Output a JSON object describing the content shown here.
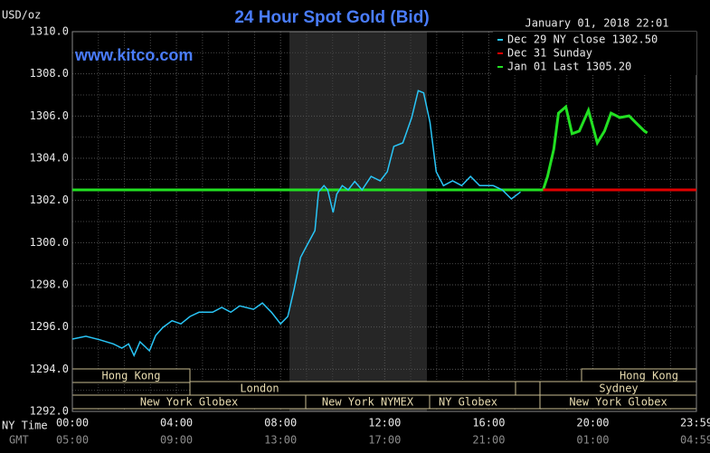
{
  "chart_data": {
    "type": "line",
    "title": "24 Hour Spot Gold (Bid)",
    "subtitle": "www.kitco.com",
    "timestamp": "January 01, 2018 22:01",
    "y_label": "USD/oz",
    "x_label": "NY Time",
    "x2_label": "GMT",
    "xlim": [
      0,
      23.98
    ],
    "xticks": [
      {
        "value": 0,
        "label": "00:00"
      },
      {
        "value": 4,
        "label": "04:00"
      },
      {
        "value": 8,
        "label": "08:00"
      },
      {
        "value": 12,
        "label": "12:00"
      },
      {
        "value": 16,
        "label": "16:00"
      },
      {
        "value": 20,
        "label": "20:00"
      },
      {
        "value": 23.98,
        "label": "23:59"
      }
    ],
    "gmt_tick_labels": [
      "05:00",
      "09:00",
      "13:00",
      "17:00",
      "21:00",
      "01:00",
      "04:59"
    ],
    "ylim": [
      1292,
      1310
    ],
    "yticks": [
      {
        "value": 1292,
        "label": "1292.0"
      },
      {
        "value": 1294,
        "label": "1294.0"
      },
      {
        "value": 1296,
        "label": "1296.0"
      },
      {
        "value": 1298,
        "label": "1298.0"
      },
      {
        "value": 1300,
        "label": "1300.0"
      },
      {
        "value": 1302,
        "label": "1302.0"
      },
      {
        "value": 1304,
        "label": "1304.0"
      },
      {
        "value": 1306,
        "label": "1306.0"
      },
      {
        "value": 1308,
        "label": "1308.0"
      },
      {
        "value": 1310,
        "label": "1310.0"
      }
    ],
    "grid": true,
    "sessions": [
      [
        "Hong Kong",
        "Hong Kong"
      ],
      [
        "London",
        "Sydney"
      ],
      [
        "New York Globex",
        "New York NYMEX",
        "NY Globex",
        "New York Globex"
      ]
    ],
    "series": [
      {
        "name": "Dec 29 NY close 1302.50",
        "color": "#29c5f6",
        "x": [
          0,
          0.52,
          1.04,
          1.57,
          1.9,
          2.16,
          2.37,
          2.6,
          2.96,
          3.2,
          3.48,
          3.83,
          4.17,
          4.52,
          4.87,
          5.39,
          5.74,
          6.09,
          6.43,
          6.96,
          7.3,
          7.65,
          8.0,
          8.28,
          8.52,
          8.77,
          9.04,
          9.32,
          9.46,
          9.67,
          9.81,
          10.02,
          10.16,
          10.37,
          10.6,
          10.85,
          11.13,
          11.48,
          11.83,
          12.1,
          12.35,
          12.7,
          13.04,
          13.29,
          13.5,
          13.74,
          13.98,
          14.26,
          14.61,
          14.96,
          15.3,
          15.65,
          16.17,
          16.52,
          16.87,
          17.22
        ],
        "values": [
          1295.43,
          1295.56,
          1295.4,
          1295.2,
          1295.0,
          1295.2,
          1294.65,
          1295.3,
          1294.87,
          1295.6,
          1295.98,
          1296.3,
          1296.15,
          1296.5,
          1296.7,
          1296.7,
          1296.93,
          1296.7,
          1297.0,
          1296.84,
          1297.14,
          1296.7,
          1296.15,
          1296.5,
          1297.8,
          1299.3,
          1299.93,
          1300.57,
          1302.4,
          1302.7,
          1302.5,
          1301.43,
          1302.3,
          1302.7,
          1302.5,
          1302.9,
          1302.5,
          1303.14,
          1302.93,
          1303.36,
          1304.56,
          1304.73,
          1305.93,
          1307.2,
          1307.1,
          1305.7,
          1303.36,
          1302.7,
          1302.93,
          1302.7,
          1303.14,
          1302.7,
          1302.7,
          1302.5,
          1302.07,
          1302.4
        ]
      },
      {
        "name": "Dec 31 Sunday",
        "color": "#e00000",
        "x": [
          18.09,
          23.98
        ],
        "values": [
          1302.5,
          1302.5
        ]
      },
      {
        "name": "Jan 01 Last 1305.20",
        "color": "#22e022",
        "x": [
          0,
          18.09,
          18.26,
          18.5,
          18.68,
          18.96,
          19.2,
          19.48,
          19.83,
          20.0,
          20.17,
          20.45,
          20.7,
          21.04,
          21.39,
          21.63,
          21.98,
          22.09
        ],
        "values": [
          1302.5,
          1302.5,
          1303.14,
          1304.43,
          1306.14,
          1306.44,
          1305.16,
          1305.29,
          1306.27,
          1305.5,
          1304.73,
          1305.29,
          1306.14,
          1305.93,
          1306.01,
          1305.71,
          1305.29,
          1305.2
        ]
      }
    ]
  }
}
